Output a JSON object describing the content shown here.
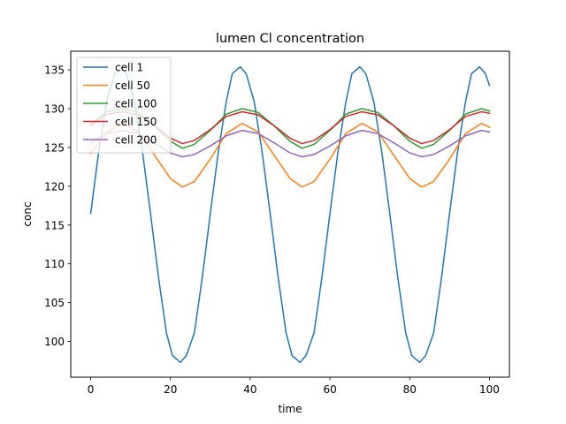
{
  "chart_data": {
    "type": "line",
    "title": "lumen Cl concentration",
    "xlabel": "time",
    "ylabel": "conc",
    "xlim": [
      -5,
      105
    ],
    "ylim": [
      95.4,
      137.4
    ],
    "xticks": [
      0,
      20,
      40,
      60,
      80,
      100
    ],
    "yticks": [
      100,
      105,
      110,
      115,
      120,
      125,
      130,
      135
    ],
    "grid": false,
    "legend_position": "top-left",
    "series": [
      {
        "name": "cell 1",
        "color": "#1f77b4",
        "x": [
          0,
          2,
          4,
          6,
          7.5,
          9,
          11,
          13,
          15,
          17,
          19,
          20.5,
          22.5,
          24,
          26,
          28,
          30,
          32,
          34,
          35.5,
          37.5,
          39,
          41,
          43,
          45,
          47,
          49,
          50.5,
          52.5,
          54,
          56,
          58,
          60,
          62,
          64,
          65.5,
          67.5,
          69,
          71,
          73,
          75,
          77,
          79,
          80.5,
          82.5,
          84,
          86,
          88,
          90,
          92,
          94,
          95.5,
          97.5,
          99,
          100
        ],
        "y": [
          116.5,
          124.4,
          130.9,
          134.5,
          135.4,
          134.5,
          130.9,
          124.4,
          116.5,
          108.3,
          101.1,
          98.2,
          97.3,
          98.2,
          101.1,
          108.3,
          116.5,
          124.4,
          130.9,
          134.5,
          135.4,
          134.5,
          130.9,
          124.4,
          116.5,
          108.3,
          101.1,
          98.2,
          97.3,
          98.2,
          101.1,
          108.3,
          116.5,
          124.4,
          130.9,
          134.5,
          135.4,
          134.5,
          130.9,
          124.4,
          116.5,
          108.3,
          101.1,
          98.2,
          97.3,
          98.2,
          101.1,
          108.3,
          116.5,
          124.4,
          130.9,
          134.5,
          135.4,
          134.5,
          133.0
        ]
      },
      {
        "name": "cell 50",
        "color": "#ff7f0e",
        "x": [
          0,
          4,
          8,
          12,
          16,
          20,
          23,
          26,
          30,
          34,
          38,
          42,
          46,
          50,
          53,
          56,
          60,
          64,
          68,
          72,
          76,
          80,
          83,
          86,
          90,
          94,
          98,
          100
        ],
        "y": [
          124.2,
          127.0,
          128.1,
          127.0,
          124.0,
          121.0,
          119.9,
          120.6,
          123.5,
          126.8,
          128.1,
          127.0,
          124.0,
          121.0,
          119.9,
          120.6,
          123.5,
          126.8,
          128.1,
          127.0,
          124.0,
          121.0,
          119.9,
          120.6,
          123.5,
          126.8,
          128.1,
          127.6
        ]
      },
      {
        "name": "cell 100",
        "color": "#2ca02c",
        "x": [
          0,
          4,
          8,
          12,
          16,
          20,
          23,
          26,
          30,
          34,
          38,
          42,
          46,
          50,
          53,
          56,
          60,
          64,
          68,
          72,
          76,
          80,
          83,
          86,
          90,
          94,
          98,
          100
        ],
        "y": [
          128.0,
          129.6,
          130.0,
          129.5,
          127.8,
          125.8,
          124.9,
          125.4,
          127.2,
          129.3,
          130.0,
          129.5,
          127.8,
          125.8,
          124.9,
          125.4,
          127.2,
          129.3,
          130.0,
          129.5,
          127.8,
          125.8,
          124.9,
          125.4,
          127.2,
          129.3,
          130.0,
          129.7
        ]
      },
      {
        "name": "cell 150",
        "color": "#d62728",
        "x": [
          0,
          4,
          8,
          12,
          16,
          20,
          23,
          26,
          30,
          34,
          38,
          42,
          46,
          50,
          53,
          56,
          60,
          64,
          68,
          72,
          76,
          80,
          83,
          86,
          90,
          94,
          98,
          100
        ],
        "y": [
          127.8,
          129.3,
          129.6,
          129.2,
          127.8,
          126.2,
          125.5,
          125.9,
          127.3,
          129.0,
          129.6,
          129.2,
          127.8,
          126.2,
          125.5,
          125.9,
          127.3,
          129.0,
          129.6,
          129.2,
          127.8,
          126.2,
          125.5,
          125.9,
          127.3,
          129.0,
          129.6,
          129.4
        ]
      },
      {
        "name": "cell 200",
        "color": "#9467bd",
        "x": [
          0,
          4,
          8,
          12,
          16,
          20,
          23,
          26,
          30,
          34,
          38,
          42,
          46,
          50,
          53,
          56,
          60,
          64,
          68,
          72,
          76,
          80,
          83,
          86,
          90,
          94,
          98,
          100
        ],
        "y": [
          125.6,
          126.8,
          127.2,
          126.8,
          125.6,
          124.3,
          123.8,
          124.1,
          125.2,
          126.5,
          127.2,
          126.8,
          125.6,
          124.3,
          123.8,
          124.1,
          125.2,
          126.5,
          127.2,
          126.8,
          125.6,
          124.3,
          123.8,
          124.1,
          125.2,
          126.5,
          127.2,
          127.0
        ]
      }
    ]
  }
}
